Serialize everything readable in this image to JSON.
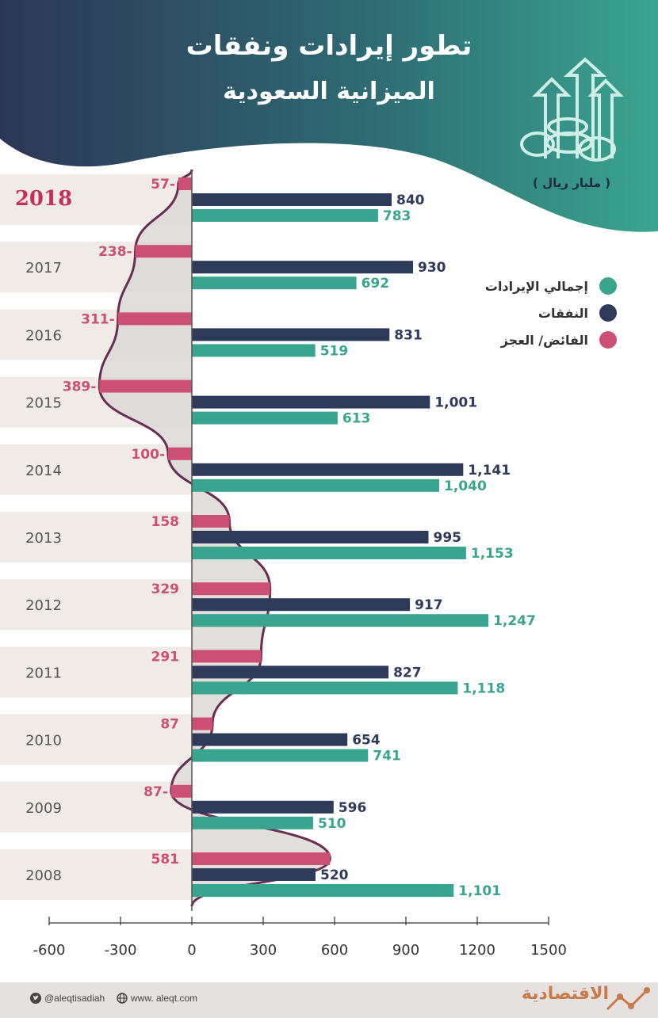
{
  "header": {
    "title_line1": "تطور إيرادات ونفقات",
    "title_line2": "الميزانية السعودية",
    "unit": "( مليار ريال )",
    "bg_color": "#2b3a5c",
    "accent_color": "#3aa58e"
  },
  "legend": [
    {
      "label": "إجمالي الإيرادات",
      "color": "#3aa58e"
    },
    {
      "label": "النفقات",
      "color": "#2e3a5a"
    },
    {
      "label": "الفائض/ العجز",
      "color": "#cc4f75"
    }
  ],
  "footer": {
    "twitter": "@aleqtisadiah",
    "website": "www. aleqt.com",
    "brand": "الاقتصادية"
  },
  "chart_data": {
    "type": "bar",
    "orientation": "horizontal",
    "categories": [
      "2018",
      "2017",
      "2016",
      "2015",
      "2014",
      "2013",
      "2012",
      "2011",
      "2010",
      "2009",
      "2008"
    ],
    "highlight_category": "2018",
    "series": [
      {
        "name": "الفائض/ العجز",
        "color": "#cc4f75",
        "values": [
          -57,
          -238,
          -311,
          -389,
          -100,
          158,
          329,
          291,
          87,
          -87,
          581
        ],
        "labels": [
          "57-",
          "238-",
          "311-",
          "389-",
          "100-",
          "158",
          "329",
          "291",
          "87",
          "87-",
          "581"
        ]
      },
      {
        "name": "النفقات",
        "color": "#2e3a5a",
        "values": [
          840,
          930,
          831,
          1001,
          1141,
          995,
          917,
          827,
          654,
          596,
          520
        ],
        "labels": [
          "840",
          "930",
          "831",
          "1,001",
          "1,141",
          "995",
          "917",
          "827",
          "654",
          "596",
          "520"
        ]
      },
      {
        "name": "إجمالي الإيرادات",
        "color": "#3aa58e",
        "values": [
          783,
          692,
          519,
          613,
          1040,
          1153,
          1247,
          1118,
          741,
          510,
          1101
        ],
        "labels": [
          "783",
          "692",
          "519",
          "613",
          "1,040",
          "1,153",
          "1,247",
          "1,118",
          "741",
          "510",
          "1,101"
        ]
      }
    ],
    "x_ticks": [
      -600,
      -300,
      0,
      300,
      600,
      900,
      1200,
      1500
    ],
    "x_tick_labels": [
      "-600",
      "-300",
      "0",
      "300",
      "600",
      "900",
      "1200",
      "1500"
    ],
    "xlim": [
      -600,
      1500
    ],
    "grid": false
  }
}
